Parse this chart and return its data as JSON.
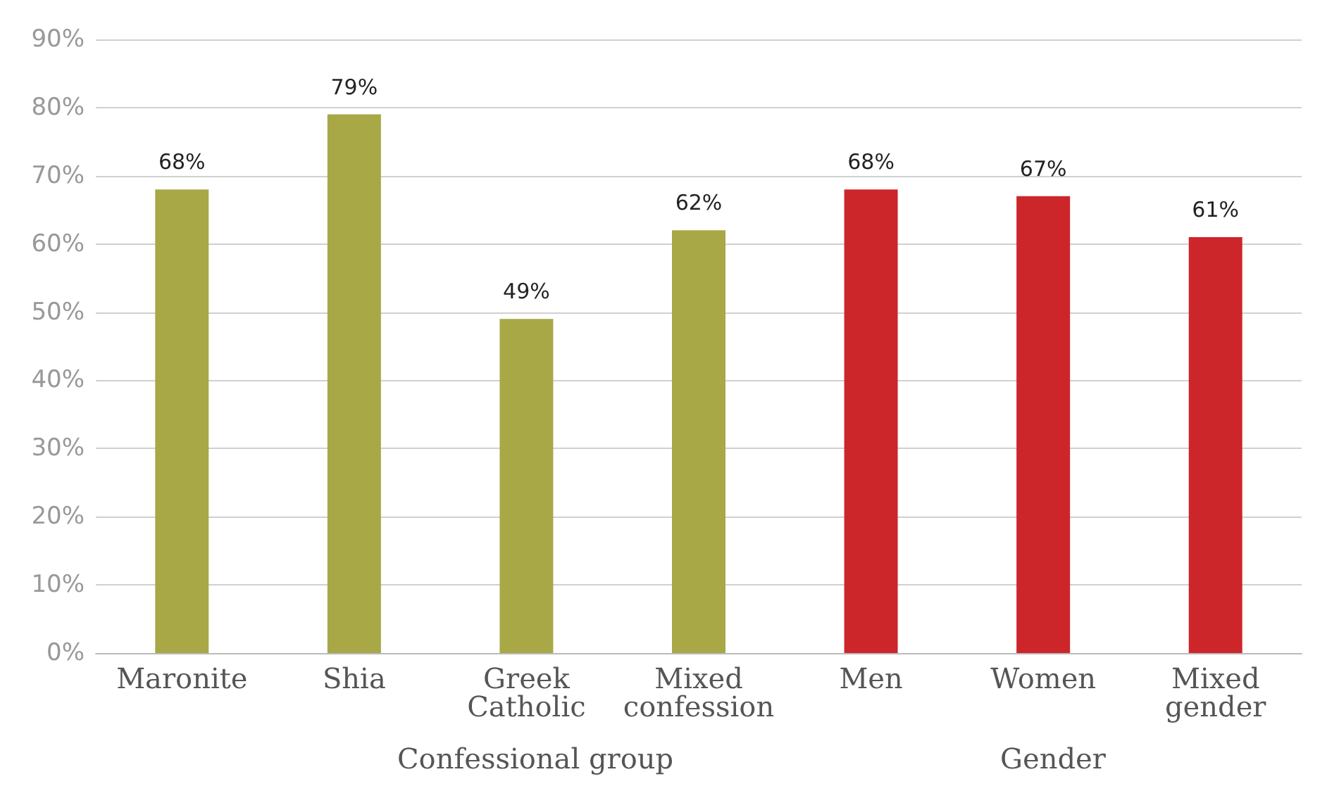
{
  "chart_data": {
    "type": "bar",
    "categories": [
      "Maronite",
      "Shia",
      "Greek\nCatholic",
      "Mixed\nconfession",
      "Men",
      "Women",
      "Mixed\ngender"
    ],
    "values": [
      68,
      79,
      49,
      62,
      68,
      67,
      61
    ],
    "colors": [
      "#a8a846",
      "#a8a846",
      "#a8a846",
      "#a8a846",
      "#cc262b",
      "#cc262b",
      "#cc262b"
    ],
    "value_labels": [
      "68%",
      "79%",
      "49%",
      "62%",
      "68%",
      "67%",
      "61%"
    ],
    "ylim": [
      0,
      90
    ],
    "yticks": [
      {
        "value": 0,
        "label": "0%"
      },
      {
        "value": 10,
        "label": "10%"
      },
      {
        "value": 20,
        "label": "20%"
      },
      {
        "value": 30,
        "label": "30%"
      },
      {
        "value": 40,
        "label": "40%"
      },
      {
        "value": 50,
        "label": "50%"
      },
      {
        "value": 60,
        "label": "60%"
      },
      {
        "value": 70,
        "label": "70%"
      },
      {
        "value": 80,
        "label": "80%"
      },
      {
        "value": 90,
        "label": "90%"
      }
    ],
    "annotations": [
      "Confessional group",
      "Gender"
    ],
    "grid": "y"
  }
}
